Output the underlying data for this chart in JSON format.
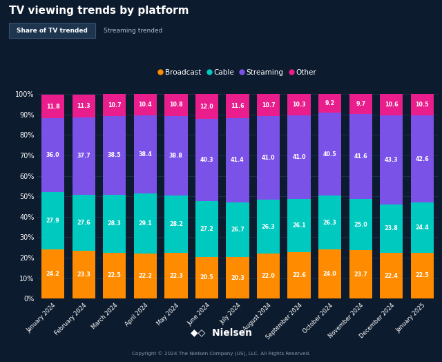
{
  "title": "TV viewing trends by platform",
  "background_color": "#0d1b2e",
  "plot_background_color": "#0d1b2e",
  "grid_color": "#1a2e4a",
  "text_color": "#ffffff",
  "categories": [
    "January 2024",
    "February 2024",
    "March 2024",
    "April 2024",
    "May 2024",
    "June 2024",
    "July 2024",
    "August 2024",
    "September 2024",
    "October 2024",
    "November 2024",
    "December 2024",
    "January 2025"
  ],
  "broadcast": [
    24.2,
    23.3,
    22.5,
    22.2,
    22.3,
    20.5,
    20.3,
    22.0,
    22.6,
    24.0,
    23.7,
    22.4,
    22.5
  ],
  "cable": [
    27.9,
    27.6,
    28.3,
    29.1,
    28.2,
    27.2,
    26.7,
    26.3,
    26.1,
    26.3,
    25.0,
    23.8,
    24.4
  ],
  "streaming": [
    36.0,
    37.7,
    38.5,
    38.4,
    38.8,
    40.3,
    41.4,
    41.0,
    41.0,
    40.5,
    41.6,
    43.3,
    42.6
  ],
  "other": [
    11.8,
    11.3,
    10.7,
    10.4,
    10.8,
    12.0,
    11.6,
    10.7,
    10.3,
    9.2,
    9.7,
    10.6,
    10.5
  ],
  "broadcast_color": "#ff8c00",
  "cable_color": "#00c9c0",
  "streaming_color": "#7b52e8",
  "other_color": "#e91e8c",
  "legend_labels": [
    "Broadcast",
    "Cable",
    "Streaming",
    "Other"
  ],
  "ylabel_ticks": [
    "0%",
    "10%",
    "20%",
    "30%",
    "40%",
    "50%",
    "60%",
    "70%",
    "80%",
    "90%",
    "100%"
  ],
  "ylabel_values": [
    0,
    10,
    20,
    30,
    40,
    50,
    60,
    70,
    80,
    90,
    100
  ],
  "button1": "Share of TV trended",
  "button2": "Streaming trended",
  "footer": "Copyright © 2024 The Nielsen Company (US), LLC. All Rights Reserved.",
  "nielsen_icon": "◆◇"
}
